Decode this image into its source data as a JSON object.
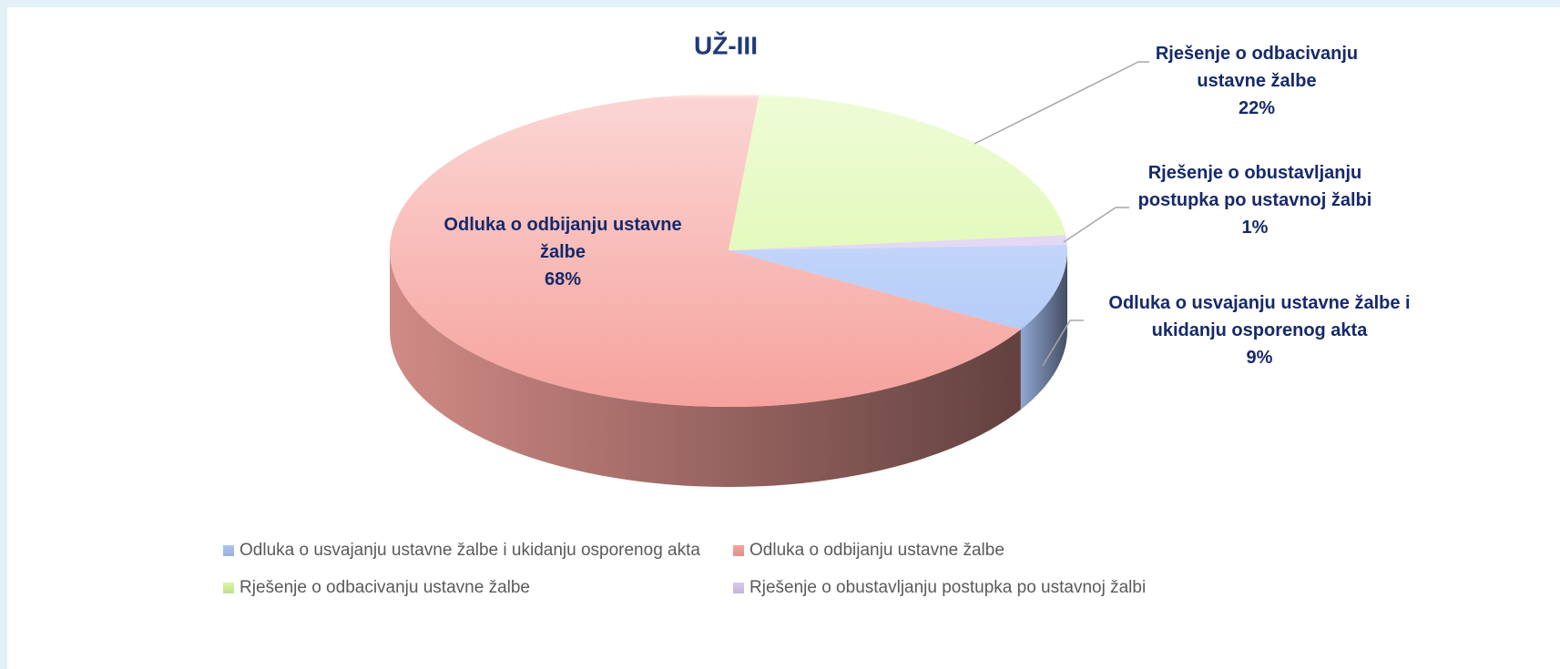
{
  "chart_data": {
    "type": "pie3d",
    "title": "UŽ-III",
    "categories": [
      "Odluka o usvajanju ustavne žalbe i ukidanju osporenog akta",
      "Odluka o odbijanju ustavne žalbe",
      "Rješenje o odbacivanju ustavne žalbe",
      "Rješenje o obustavljanju postupka po ustavnoj žalbi"
    ],
    "values": [
      9,
      68,
      22,
      1
    ],
    "value_labels": [
      "9%",
      "68%",
      "22%",
      "1%"
    ],
    "colors": [
      "#a9c4f7",
      "#f6a29d",
      "#d9f7a3",
      "#d8c9f0"
    ],
    "legend": "bottom"
  }
}
